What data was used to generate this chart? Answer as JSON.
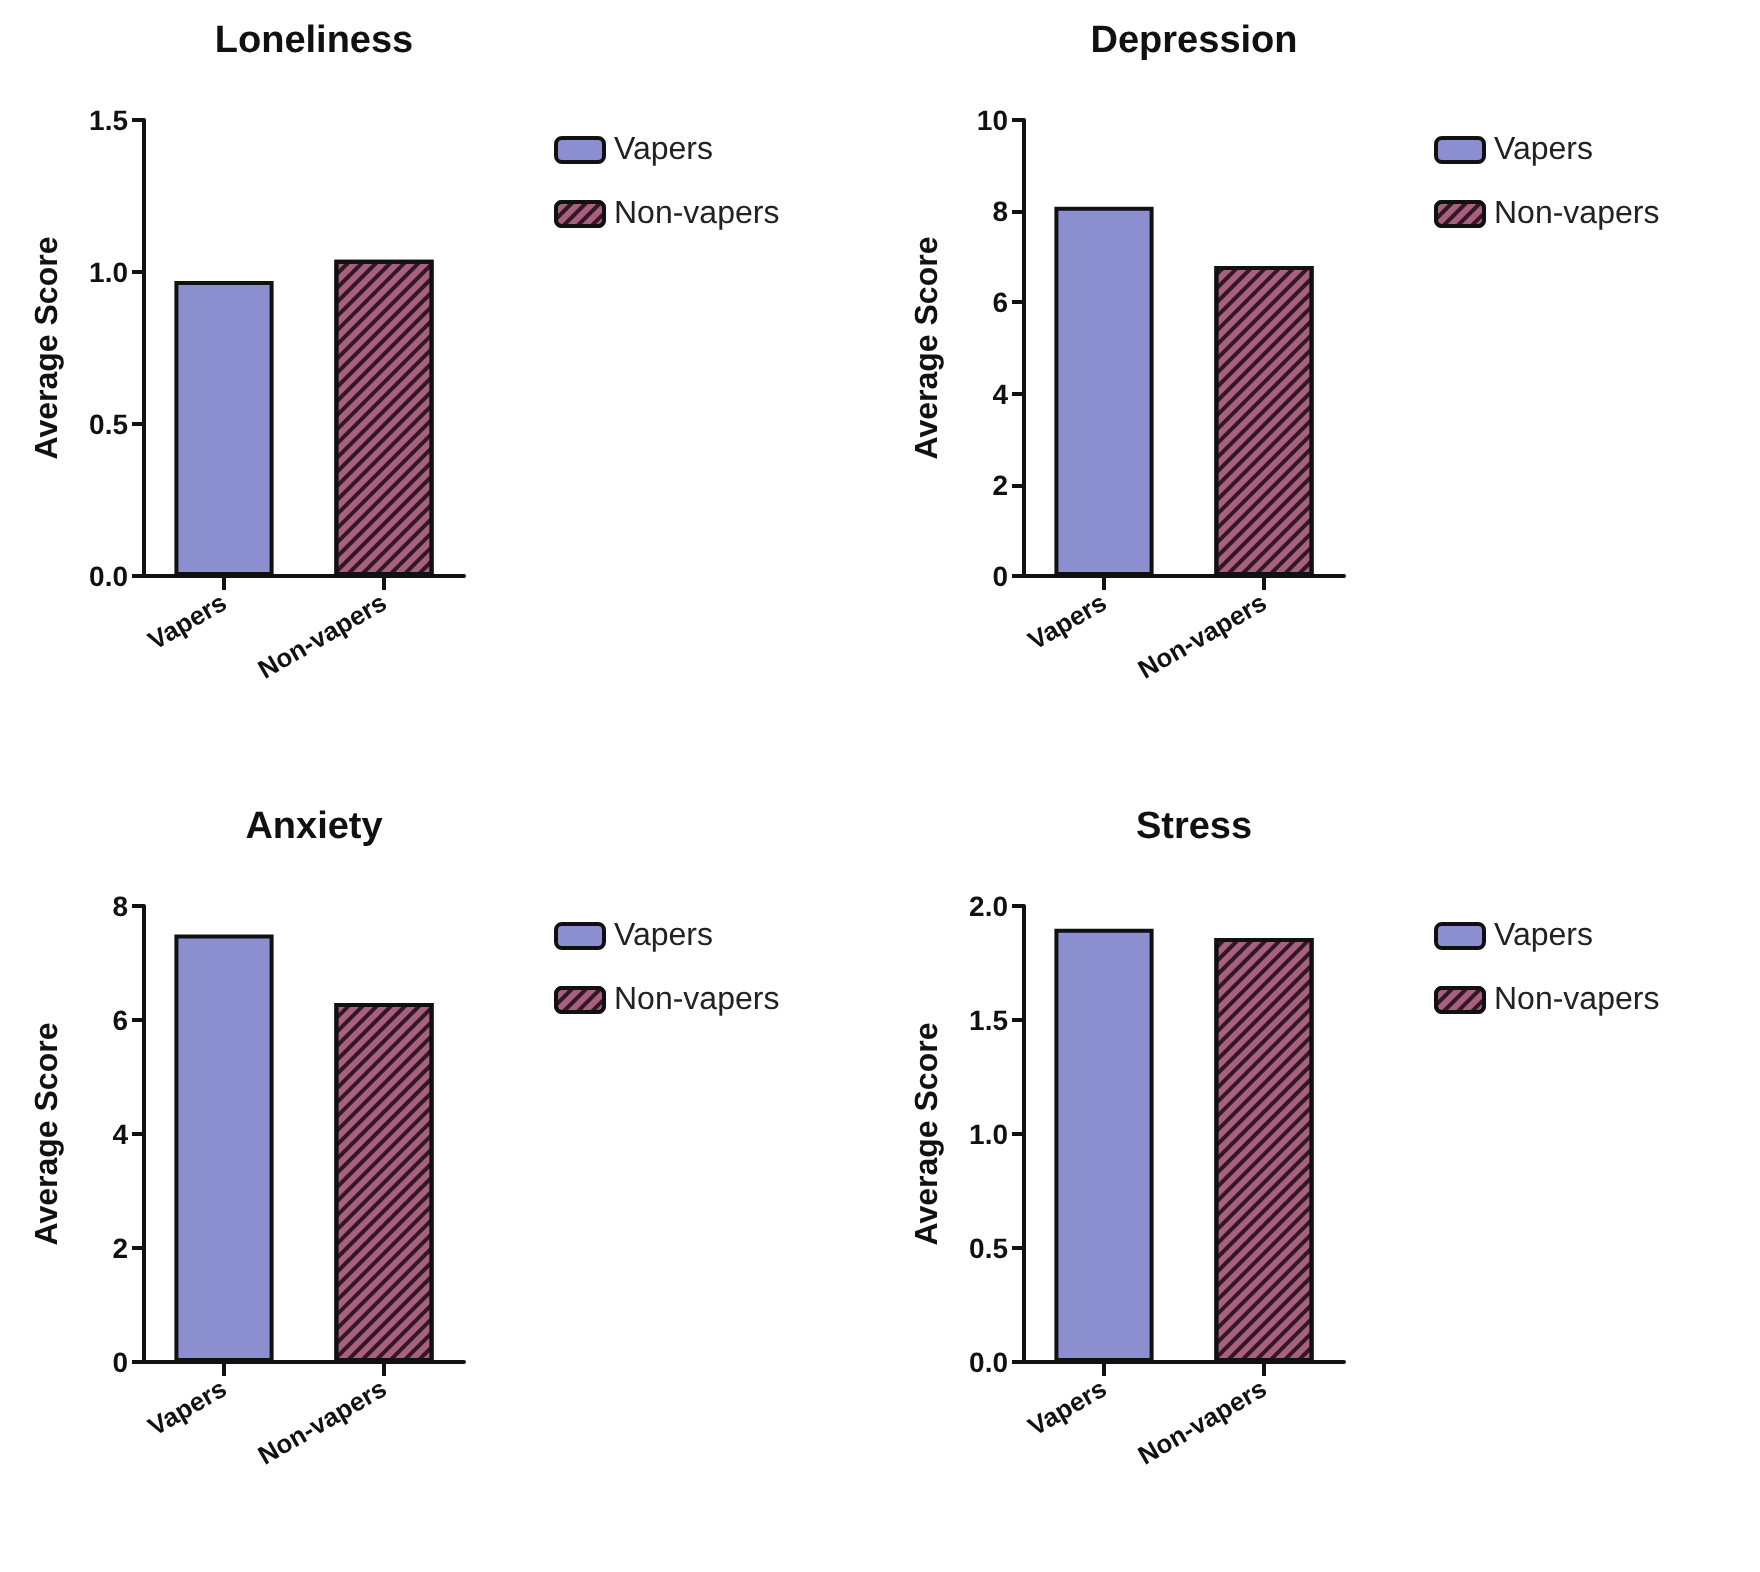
{
  "chart_data": [
    {
      "type": "bar",
      "title": "Loneliness",
      "ylabel": "Average Score",
      "categories": [
        "Vapers",
        "Non-vapers"
      ],
      "series": [
        {
          "name": "Vapers",
          "color": "#8b8fcf",
          "values": [
            0.97,
            null
          ]
        },
        {
          "name": "Non-vapers",
          "color": "#a8607f",
          "values": [
            null,
            1.04
          ]
        }
      ],
      "ylim": [
        0,
        1.5
      ],
      "yticks": [
        {
          "value": 0,
          "label": "0.0"
        },
        {
          "value": 0.5,
          "label": "0.5"
        },
        {
          "value": 1,
          "label": "1.0"
        },
        {
          "value": 1.5,
          "label": "1.5"
        }
      ],
      "legend": "right",
      "grid": false
    },
    {
      "type": "bar",
      "title": "Depression",
      "ylabel": "Average Score",
      "categories": [
        "Vapers",
        "Non-vapers"
      ],
      "series": [
        {
          "name": "Vapers",
          "color": "#8b8fcf",
          "values": [
            8.1,
            null
          ]
        },
        {
          "name": "Non-vapers",
          "color": "#a8607f",
          "values": [
            null,
            6.8
          ]
        }
      ],
      "ylim": [
        0,
        10
      ],
      "yticks": [
        0,
        2,
        4,
        6,
        8,
        10
      ],
      "legend": "right",
      "grid": false
    },
    {
      "type": "bar",
      "title": "Anxiety",
      "ylabel": "Average Score",
      "categories": [
        "Vapers",
        "Non-vapers"
      ],
      "series": [
        {
          "name": "Vapers",
          "color": "#8b8fcf",
          "values": [
            7.5,
            null
          ]
        },
        {
          "name": "Non-vapers",
          "color": "#a8607f",
          "values": [
            null,
            6.3
          ]
        }
      ],
      "ylim": [
        0,
        8
      ],
      "yticks": [
        0,
        2,
        4,
        6,
        8
      ],
      "legend": "right",
      "grid": false
    },
    {
      "type": "bar",
      "title": "Stress",
      "ylabel": "Average Score",
      "categories": [
        "Vapers",
        "Non-vapers"
      ],
      "series": [
        {
          "name": "Vapers",
          "color": "#8b8fcf",
          "values": [
            1.9,
            null
          ]
        },
        {
          "name": "Non-vapers",
          "color": "#a8607f",
          "values": [
            null,
            1.86
          ]
        }
      ],
      "ylim": [
        0,
        2
      ],
      "yticks": [
        {
          "value": 0,
          "label": "0.0"
        },
        {
          "value": 0.5,
          "label": "0.5"
        },
        {
          "value": 1,
          "label": "1.0"
        },
        {
          "value": 1.5,
          "label": "1.5"
        },
        {
          "value": 2,
          "label": "2.0"
        }
      ],
      "legend": "right",
      "grid": false
    }
  ]
}
